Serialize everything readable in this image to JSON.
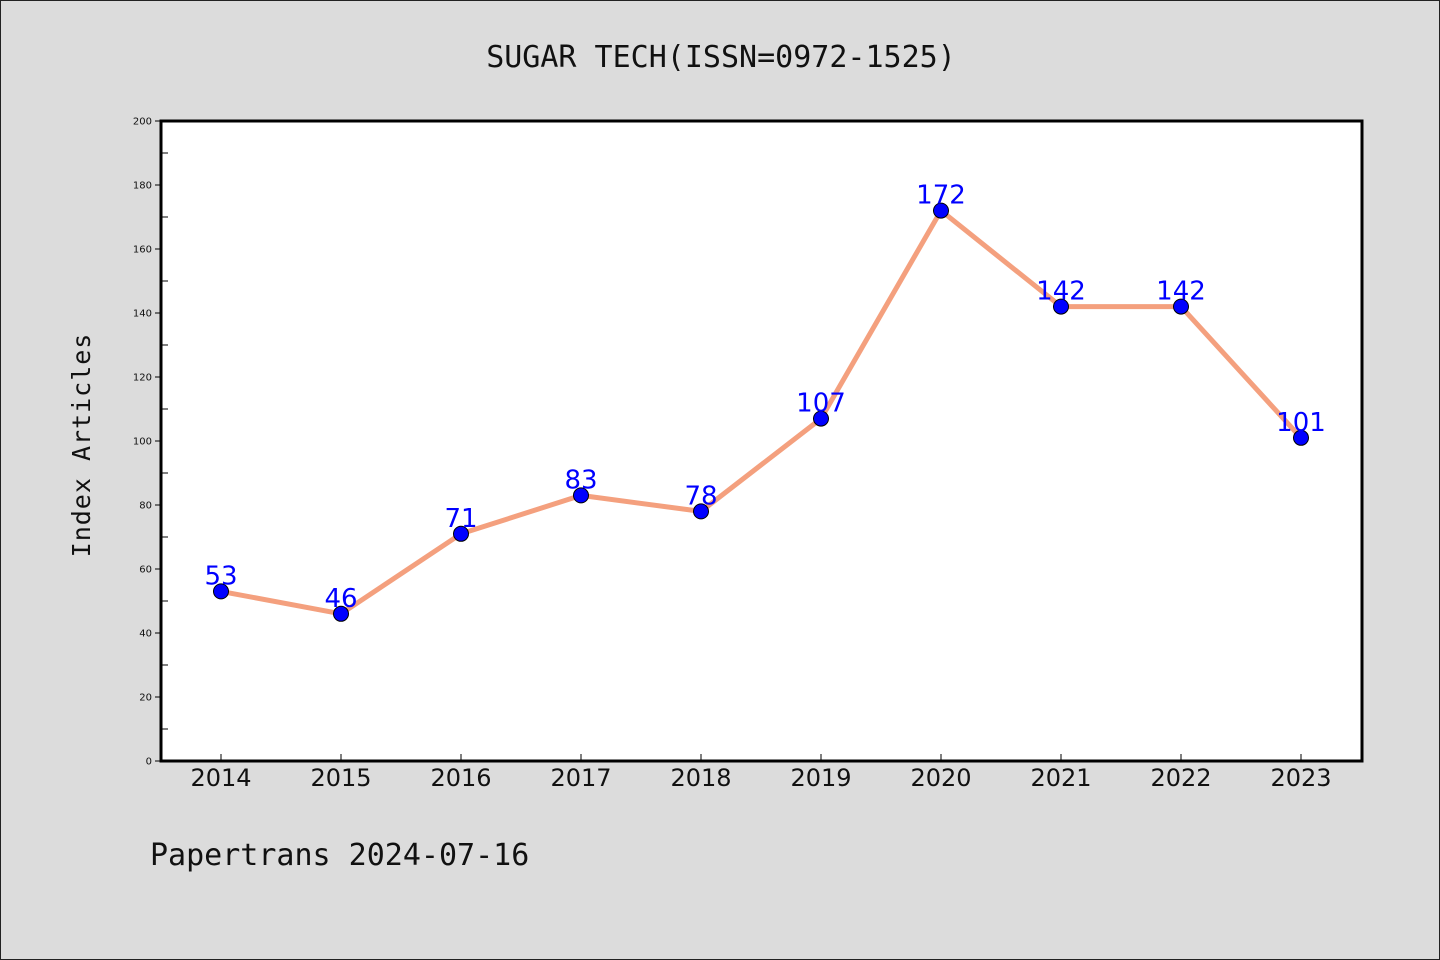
{
  "chart_data": {
    "type": "line",
    "title": "SUGAR TECH(ISSN=0972-1525)",
    "xlabel": "",
    "ylabel": "Index Articles",
    "categories": [
      "2014",
      "2015",
      "2016",
      "2017",
      "2018",
      "2019",
      "2020",
      "2021",
      "2022",
      "2023"
    ],
    "values": [
      53,
      46,
      71,
      83,
      78,
      107,
      172,
      142,
      142,
      101
    ],
    "ylim": [
      0,
      200
    ],
    "yticks": [
      0,
      20,
      40,
      60,
      80,
      100,
      120,
      140,
      160,
      180,
      200
    ],
    "grid": false,
    "legend": "none",
    "colors": {
      "line": "#f4a07e",
      "marker": "#0000ff",
      "data_label": "#0000ff",
      "background": "#dcdcdc",
      "plot_area": "#ffffff"
    }
  },
  "footer": {
    "text": "Papertrans 2024-07-16"
  }
}
